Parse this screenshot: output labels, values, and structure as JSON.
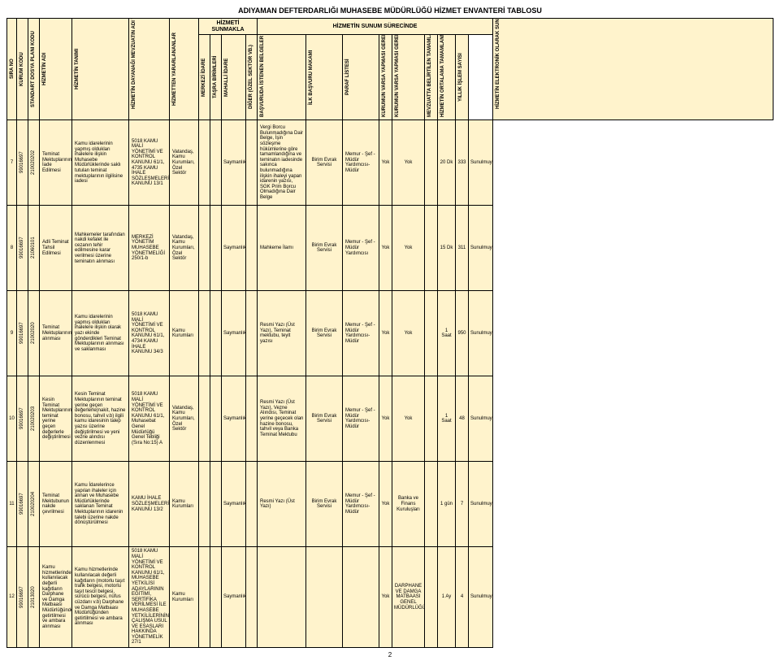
{
  "title": "ADIYAMAN DEFTERDARLIĞI MUHASEBE MÜDÜRLÜĞÜ HİZMET ENVANTERİ TABLOSU",
  "pageNumber": "2",
  "headers": {
    "sira": "SIRA NO",
    "kurum": "KURUM KODU",
    "dosya": "STANDART DOSYA PLANI KODU",
    "adi": "HİZMETİN ADI",
    "tanim": "HİZMETİN TANIMI",
    "dayanak": "HİZMETİN DAYANAĞI MEVZUATIN ADI VE MADDE NUMARASI",
    "yarar": "HİZMETTEN YARARLANANLAR",
    "sunum_group": "HİZMETİ SUNMAKLA",
    "merkezi": "MERKEZİ İDARE",
    "tasra": "TAŞRA BİRİMLERİ",
    "mahalli": "MAHALLİ İDARE",
    "diger": "DİĞER (ÖZEL SEKTÖR VB.)",
    "sunum_surec_group": "HİZMETİN SUNUM SÜRECİNDE",
    "basvuru": "BAŞVURUDA İSTENEN BELGELER",
    "ilkbasvuru": "İLK BAŞVURU MAKAMI",
    "paraf": "PARAF LİSTESİ",
    "ic": "KURUMUN VARSA YAPMASI GEREKEN İÇ YAZIŞMALAR",
    "dis": "KURUMUN VARSA YAPMASI GEREKEN DIŞ YAZIŞMALAR",
    "mevzuat": "MEVZUATTA BELİRTİLEN TAMAMLANMA SÜRESİ",
    "ortalama": "HİZMETİN ORTALAMA TAMAMLANMA SÜRESİ",
    "yillik": "YILLIK İŞLEM SAYISI",
    "elektronik": "HİZMETİN ELEKTRONİK OLARAK SUNULUP SUNULMADIĞI"
  },
  "rows": [
    {
      "sira": "7",
      "kurum": "99016697",
      "dosya": "210020202",
      "adi": "Teminat Mektuplarının İade Edilmesi",
      "tanim": "Kamu idarelerinin yapmış oldukları ihalelere ilişkin Muhasebe Müdürlüklerinde saklı tutulan teminat mektuplarının ilgilisine iadesi",
      "dayanak": "5018 KAMU MALİ YÖNETİMİ VE KONTROL KANUNU 61/1, 4735 KAMU İHALE SÖZLEŞMELERİ KANUNU 13/1",
      "yarar": "Vatandaş, Kamu Kurumları, Özel Sektör",
      "merkezi": "",
      "tasra": "",
      "mahalli": "Saymanlık",
      "diger": "",
      "basvuru": "Vergi Borcu Bulunmadığına Dair Belge, İşin sözleşme hükümlerine göre tamamlandığına ve teminatın iadesinde sakınca bulunmadığına ilişkin ihaleyi yapan idarenin yazısı, SGK Prim Borcu Olmadığına Dair Belge",
      "ilkbasvuru": "Birim Evrak Servisi",
      "paraf": "Memur - Şef - Müdür Yardımcısı- Müdür",
      "ic": "Yok",
      "dis": "Yok",
      "mevzuat": "",
      "ortalama": "20 Dk",
      "yillik": "333",
      "elektronik": "Sunulmuyor."
    },
    {
      "sira": "8",
      "kurum": "99016697",
      "dosya": "21060101",
      "adi": "Adli Teminat Tahsil Edilmesi",
      "tanim": "Mahkemeler tarafından nakdi kefalet ile cezanın tehir edilmesine karar verilmesi üzerine teminatın alınması",
      "dayanak": "MERKEZİ YÖNETİM MUHASEBE YÖNETMELİĞİ 250/1-b",
      "yarar": "Vatandaş, Kamu Kurumları, Özel Sektör",
      "merkezi": "",
      "tasra": "",
      "mahalli": "Saymanlık",
      "diger": "",
      "basvuru": "Mahkeme İlamı",
      "ilkbasvuru": "Birim Evrak Servisi",
      "paraf": "Memur - Şef - Müdür Yardımcısı",
      "ic": "Yok",
      "dis": "Yok",
      "mevzuat": "",
      "ortalama": "15 Dk",
      "yillik": "311",
      "elektronik": "Sunulmuyor."
    },
    {
      "sira": "9",
      "kurum": "99016697",
      "dosya": "21002020",
      "adi": "Teminat Mektuplarının alınması",
      "tanim": "Kamu idarelerinin yapmış oldukları ihalelere ilişkin olarak yazı ekinde gönderdikleri Teminat Mektuplarının alınması ve saklanması",
      "dayanak": "5018 KAMU MALİ YÖNETİMİ VE KONTROL KANUNU 61/1, 4734 KAMU İHALE KANUNU 34/3",
      "yarar": "Kamu Kurumları",
      "merkezi": "",
      "tasra": "",
      "mahalli": "Saymanlık",
      "diger": "",
      "basvuru": "Resmi Yazı (Üst Yazı), Teminat mektubu, teyit yazısı",
      "ilkbasvuru": "Birim Evrak Servisi",
      "paraf": "Memur - Şef - Müdür Yardımcısı- Müdür",
      "ic": "Yok",
      "dis": "Yok",
      "mevzuat": "",
      "ortalama": "1 Saat",
      "yillik": "950",
      "elektronik": "Sunulmuyor."
    },
    {
      "sira": "10",
      "kurum": "99016697",
      "dosya": "210020203",
      "adi": "Kesin Teminat Mektuplarının teminat yerine geçen değerlerle değiştirilmesi",
      "tanim": "Kesin Teminat Mektuplarının teminat yerine geçen değerlerle(nakit, hazine bonosu, tahvil v.b) ilgili kamu idaresinin talep yazısı üzerine değiştirilmesi ve yeni vezne alındısı düzenlenmesi",
      "dayanak": "5018 KAMU MALİ YÖNETİMİ VE KONTROL KANUNU 61/1, Muhasebat Genel Müdürlüğü Genel Tebliği (Sıra No:15) A",
      "yarar": "Vatandaş, Kamu Kurumları, Özel Sektör",
      "merkezi": "",
      "tasra": "",
      "mahalli": "Saymanlık",
      "diger": "",
      "basvuru": "Resmi Yazı (Üst Yazı), Vezne Alındısı, Teminat yerine geçecek olan hazine bonosu, tahvil veya Banka Teminat Mektubu",
      "ilkbasvuru": "Birim Evrak Servisi",
      "paraf": "Memur - Şef - Müdür Yardımcısı- Müdür",
      "ic": "Yok",
      "dis": "Yok",
      "mevzuat": "",
      "ortalama": "1 Saat",
      "yillik": "48",
      "elektronik": "Sunulmuyor."
    },
    {
      "sira": "11",
      "kurum": "99016697",
      "dosya": "210020204",
      "adi": "Teminat Mektubunun nakde çevrilmesi",
      "tanim": "Kamu İdarelerince yapılan ihaleler için alınan ve Muhasebe Müdürlüklerinde saklanan Teminat Mektuplarının idarenin talebi üzerine nakde dönüştürülmesi",
      "dayanak": "KAMU İHALE SÖZLEŞMELERİ KANUNU 13/2",
      "yarar": "Kamu Kurumları",
      "merkezi": "",
      "tasra": "",
      "mahalli": "Saymanlık",
      "diger": "",
      "basvuru": "Resmi Yazı (Üst Yazı)",
      "ilkbasvuru": "Birim Evrak Servisi",
      "paraf": "Memur - Şef - Müdür Yardımcısı- Müdür",
      "ic": "Yok",
      "dis": "Banka ve Finans Kuruluşları",
      "mevzuat": "",
      "ortalama": "1 gün",
      "yillik": "7",
      "elektronik": "Sunulmuyor."
    },
    {
      "sira": "12",
      "kurum": "99016697",
      "dosya": "21013020",
      "adi": "Kamu hizmetlerinde kullanılacak değerli kağıtların Darphane ve Damga Matbaası Müdürlüğünden getirtilmesi ve ambara alınması",
      "tanim": "Kamu hizmetlerinde kullanılacak değerli kağıtların (motorlu taşıt trafik belgesi, motorlu taşıt tescil belgesi, sürücü belgesi, nüfus cüzdanı v.b) Darphane ve Damga Matbaası Müdürlüğünden getirtilmesi ve ambara alınması",
      "dayanak": "5018 KAMU MALİ YÖNETİMİ VE KONTROL KANUNU 61/1, MUHASEBE YETKİLİSİ ADAYLARININ EĞİTİMİ, SERTİFİKA VERİLMESİ İLE MUHASEBE YETKİLİLERİNİN ÇALIŞMA USUL VE ESASLARI HAKKINDA YÖNETMELİK 27/1",
      "yarar": "Kamu Kurumları",
      "merkezi": "",
      "tasra": "",
      "mahalli": "Saymanlık",
      "diger": "",
      "basvuru": "",
      "ilkbasvuru": "",
      "paraf": "",
      "ic": "Yok",
      "dis": "DARPHANE VE DAMGA MATBAASI GENEL MÜDÜRLÜĞÜ",
      "mevzuat": "",
      "ortalama": "1 Ay",
      "yillik": "4",
      "elektronik": "Sunulmuyor."
    }
  ]
}
